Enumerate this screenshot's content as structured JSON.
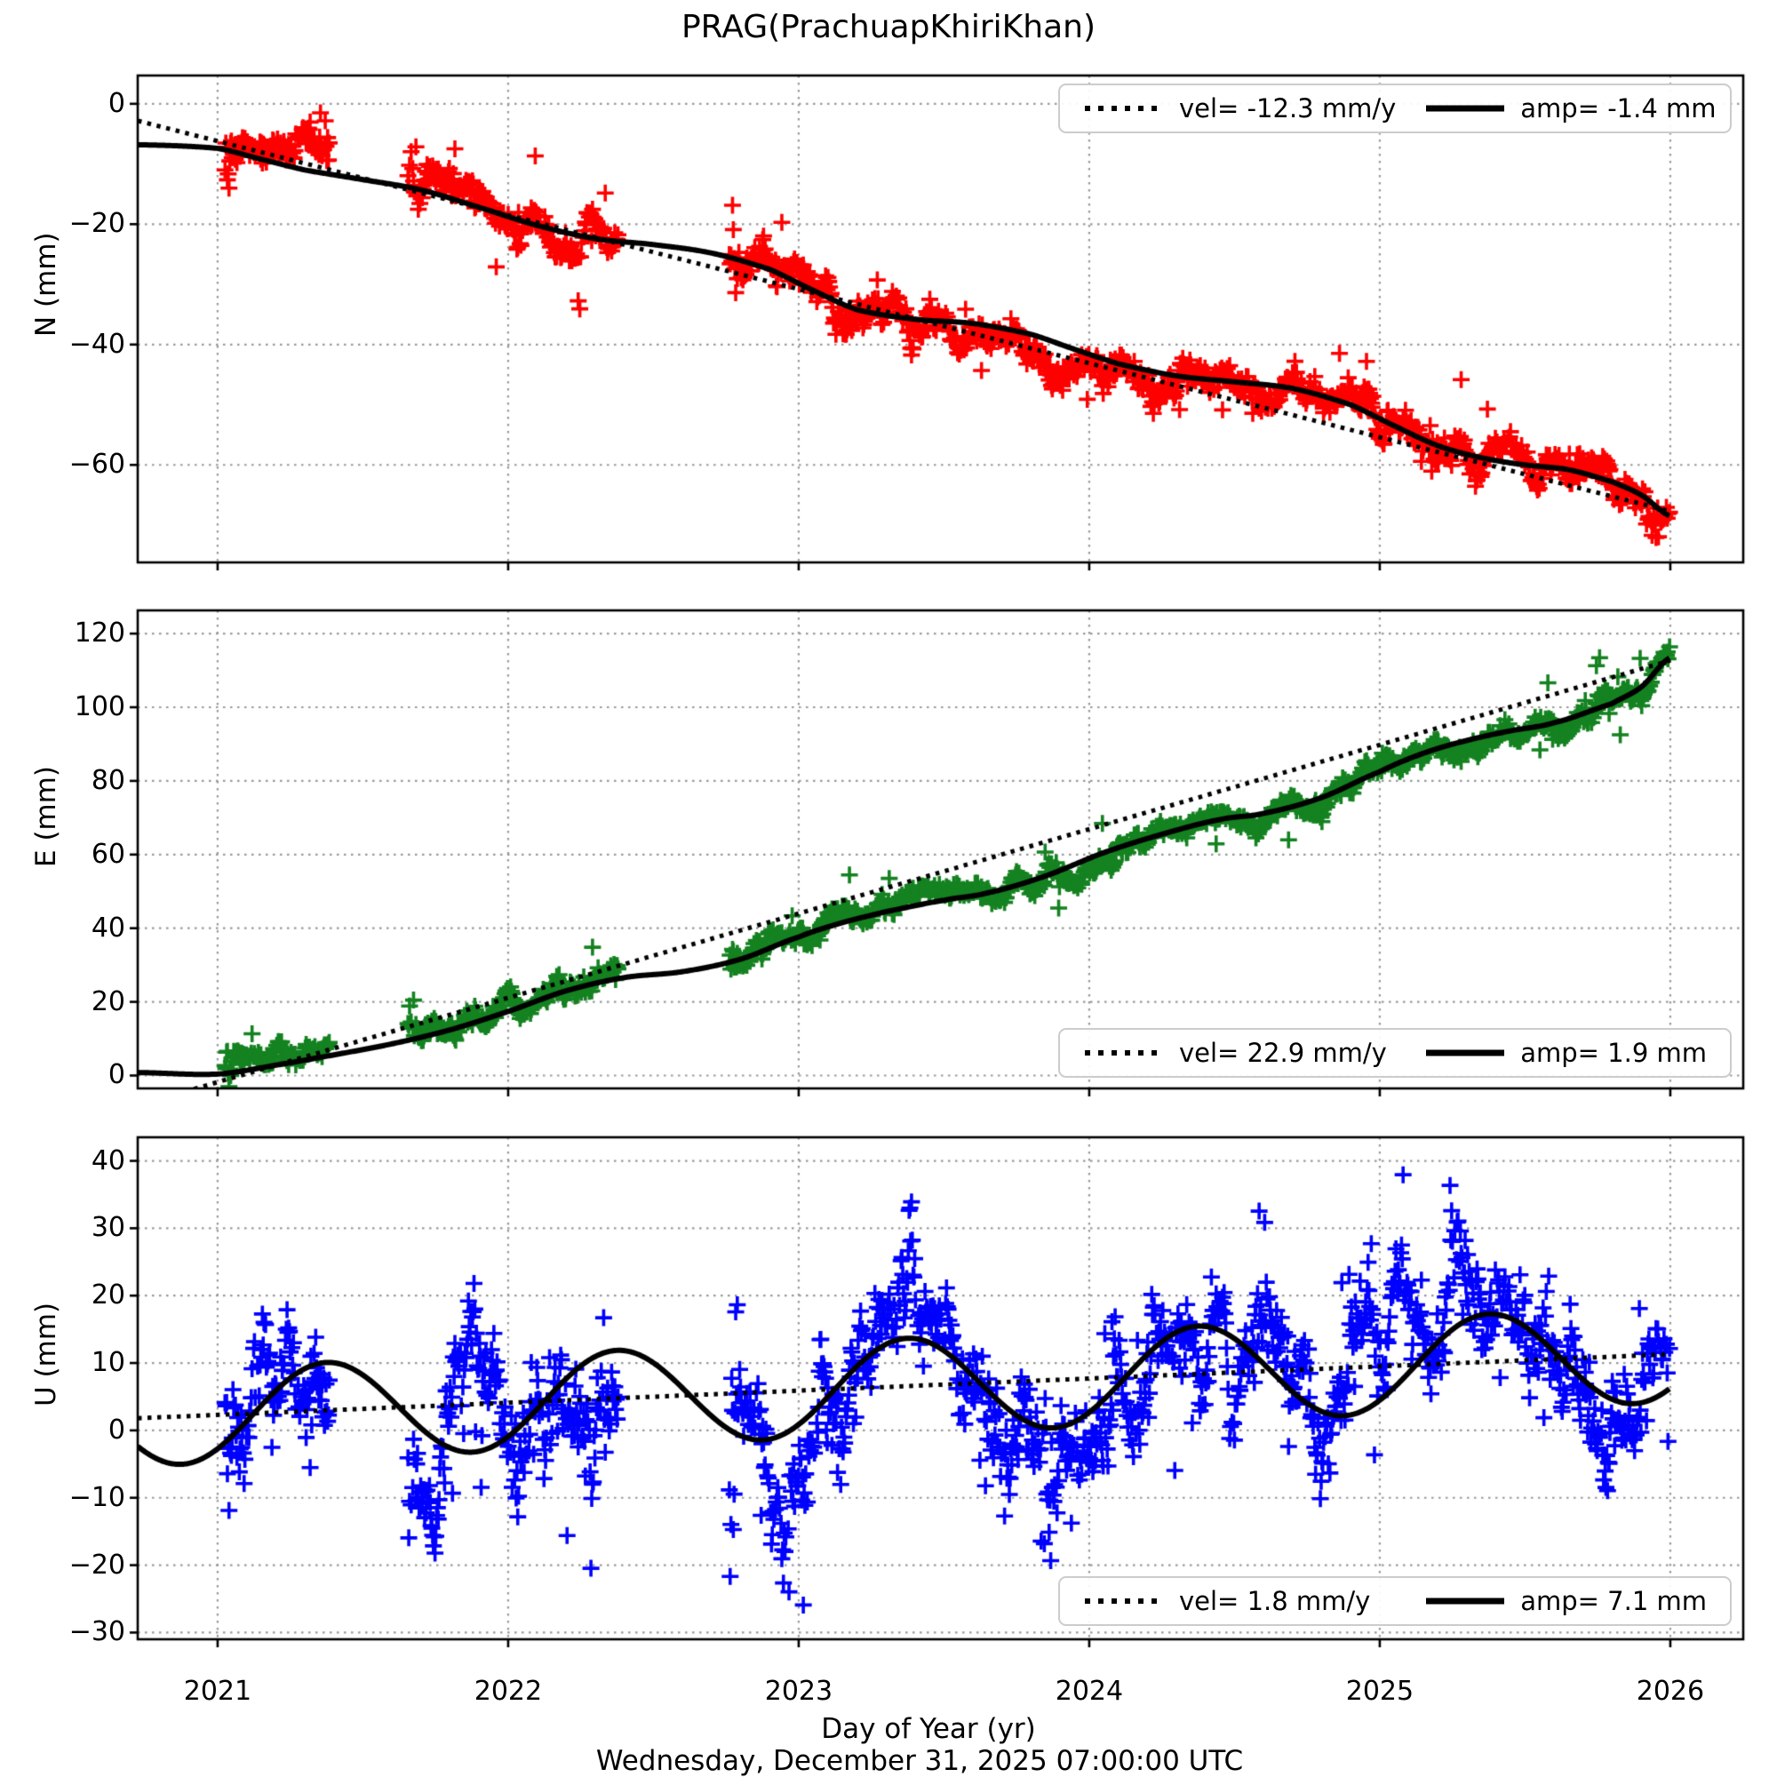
{
  "title": "PRAG(PrachuapKhiriKhan)",
  "footer": "Wednesday, December 31, 2025 07:00:00 UTC",
  "colors": {
    "north": "#ff0000",
    "east": "#148220",
    "up": "#0000ff",
    "model_line": "#000000",
    "trend_line": "#000000",
    "grid": "#999999",
    "spine": "#000000",
    "legend_border": "#cccccc"
  },
  "x_axis": {
    "label": "Day of Year (yr)",
    "ticks": [
      2021,
      2022,
      2023,
      2024,
      2025,
      2026
    ],
    "tick_labels": [
      "2021",
      "2022",
      "2023",
      "2024",
      "2025",
      "2026"
    ],
    "lim": [
      2020.725,
      2026.251
    ]
  },
  "sampling": {
    "start": 2021.02,
    "end": 2025.999,
    "step_years": 0.0027379,
    "dropout": 0.1,
    "gaps": [
      [
        2021.385,
        2021.655
      ],
      [
        2022.38,
        2022.76
      ]
    ],
    "burst_len": 0.03,
    "burst_scale": 2.2,
    "epoch_seed": 7
  },
  "chart_data": [
    {
      "type": "scatter",
      "component": "North",
      "ylabel": "N (mm)",
      "marker": "+",
      "color": "#ff0000",
      "yticks": [
        0,
        -20,
        -40,
        -60
      ],
      "ytick_labels": [
        "0",
        "−20",
        "−40",
        "−60"
      ],
      "ylim": [
        -76.2,
        4.7
      ],
      "legend": {
        "vel": "vel= -12.3 mm/y",
        "amp": "amp= -1.4 mm"
      },
      "trend": {
        "intercept_2021": -6.2,
        "slope_mm_per_yr": -12.3
      },
      "seasonal": {
        "amp_mm": -1.4
      },
      "noise": {
        "sigma": 2.4,
        "outlier_rate": 0.02,
        "outlier_scale": 5.5,
        "seed": 11,
        "clamp": [
          -73.5,
          1.5
        ]
      },
      "curve_knots": [
        [
          2020.73,
          -6.8
        ],
        [
          2021.0,
          -7.4
        ],
        [
          2021.15,
          -9.2
        ],
        [
          2021.3,
          -11.0
        ],
        [
          2021.5,
          -12.6
        ],
        [
          2021.7,
          -14.3
        ],
        [
          2021.9,
          -17.2
        ],
        [
          2022.1,
          -20.2
        ],
        [
          2022.3,
          -22.4
        ],
        [
          2022.5,
          -23.4
        ],
        [
          2022.7,
          -24.8
        ],
        [
          2022.9,
          -27.5
        ],
        [
          2023.05,
          -31.0
        ],
        [
          2023.2,
          -34.2
        ],
        [
          2023.4,
          -35.8
        ],
        [
          2023.6,
          -36.5
        ],
        [
          2023.8,
          -38.3
        ],
        [
          2023.95,
          -40.8
        ],
        [
          2024.1,
          -43.2
        ],
        [
          2024.3,
          -45.2
        ],
        [
          2024.5,
          -46.2
        ],
        [
          2024.7,
          -47.3
        ],
        [
          2024.9,
          -50.0
        ],
        [
          2025.05,
          -53.5
        ],
        [
          2025.2,
          -56.8
        ],
        [
          2025.35,
          -58.8
        ],
        [
          2025.5,
          -60.0
        ],
        [
          2025.65,
          -60.8
        ],
        [
          2025.8,
          -62.8
        ],
        [
          2025.9,
          -65.0
        ],
        [
          2026.0,
          -68.5
        ]
      ]
    },
    {
      "type": "scatter",
      "component": "East",
      "ylabel": "E (mm)",
      "marker": "+",
      "color": "#148220",
      "yticks": [
        120,
        100,
        80,
        60,
        40,
        20,
        0
      ],
      "ytick_labels": [
        "120",
        "100",
        "80",
        "60",
        "40",
        "20",
        "0"
      ],
      "ylim": [
        -3.5,
        126.3
      ],
      "legend": {
        "vel": "vel= 22.9 mm/y",
        "amp": "amp= 1.9 mm"
      },
      "trend": {
        "intercept_2021": -1.8,
        "slope_mm_per_yr": 22.9
      },
      "seasonal": {
        "amp_mm": 1.9
      },
      "noise": {
        "sigma": 2.4,
        "outlier_rate": 0.015,
        "outlier_scale": 7,
        "seed": 22,
        "clamp": [
          -3.0,
          123.0
        ]
      },
      "curve_knots": [
        [
          2020.73,
          0.8
        ],
        [
          2021.0,
          0.4
        ],
        [
          2021.2,
          2.8
        ],
        [
          2021.4,
          5.6
        ],
        [
          2021.6,
          8.6
        ],
        [
          2021.8,
          12.4
        ],
        [
          2022.0,
          17.4
        ],
        [
          2022.2,
          23.0
        ],
        [
          2022.4,
          26.6
        ],
        [
          2022.6,
          28.2
        ],
        [
          2022.8,
          31.6
        ],
        [
          2023.0,
          37.6
        ],
        [
          2023.15,
          41.5
        ],
        [
          2023.3,
          44.5
        ],
        [
          2023.5,
          47.6
        ],
        [
          2023.65,
          49.6
        ],
        [
          2023.85,
          54.2
        ],
        [
          2024.05,
          60.5
        ],
        [
          2024.25,
          65.5
        ],
        [
          2024.45,
          69.5
        ],
        [
          2024.6,
          71.2
        ],
        [
          2024.8,
          75.5
        ],
        [
          2025.0,
          82.5
        ],
        [
          2025.15,
          87.5
        ],
        [
          2025.3,
          91.0
        ],
        [
          2025.45,
          93.6
        ],
        [
          2025.6,
          95.8
        ],
        [
          2025.8,
          101.0
        ],
        [
          2025.9,
          105.5
        ],
        [
          2026.0,
          113.5
        ]
      ]
    },
    {
      "type": "scatter",
      "component": "Up",
      "ylabel": "U (mm)",
      "marker": "+",
      "color": "#0000ff",
      "yticks": [
        40,
        30,
        20,
        10,
        0,
        -10,
        -20,
        -30
      ],
      "ytick_labels": [
        "40",
        "30",
        "20",
        "10",
        "0",
        "−10",
        "−20",
        "−30"
      ],
      "ylim": [
        -31.0,
        43.5
      ],
      "legend": {
        "vel": "vel= 1.8 mm/y",
        "amp": "amp= 7.1 mm"
      },
      "trend": {
        "intercept_2021": 2.3,
        "slope_mm_per_yr": 1.8
      },
      "seasonal": {
        "amp_mm": 7.1,
        "peak_phase_yr": 0.375
      },
      "noise": {
        "sigma": 7.2,
        "outlier_rate": 0.04,
        "outlier_scale": 11,
        "seed": 33,
        "clamp": [
          -27.5,
          40.5
        ]
      },
      "curve_knots": null
    }
  ]
}
